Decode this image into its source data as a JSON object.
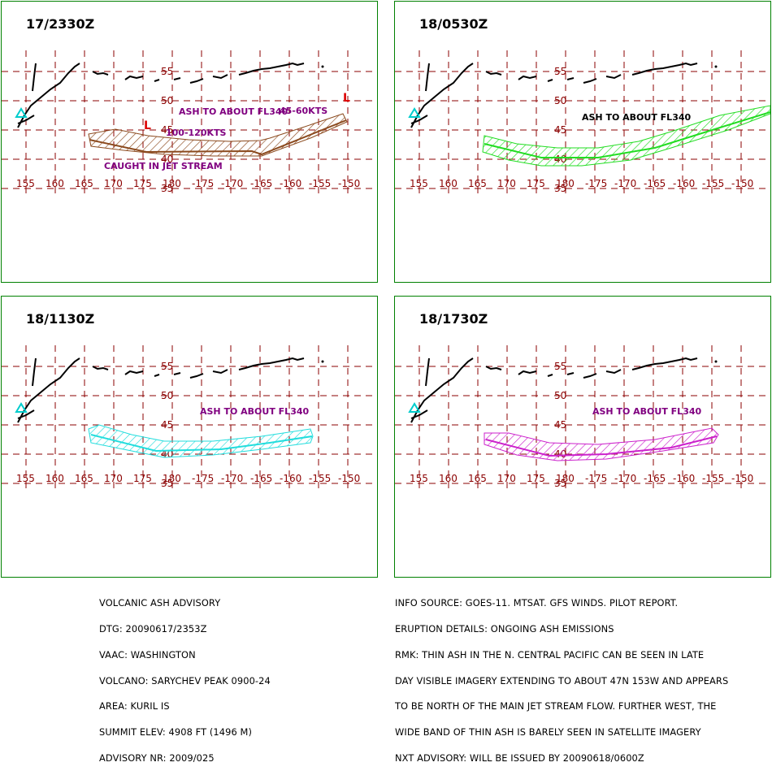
{
  "panels": [
    {
      "title": "17/2330Z",
      "ash_color": "#8b4a1e",
      "labels": [
        "ASH TO ABOUT FL340",
        "45-60KTS",
        "100-120KTS",
        "CAUGHT IN JET STREAM"
      ],
      "low_markers": [
        "L",
        "L"
      ]
    },
    {
      "title": "18/0530Z",
      "ash_color": "#22dd22",
      "labels": [
        "ASH  TO  ABOUT  FL340"
      ]
    },
    {
      "title": "18/1130Z",
      "ash_color": "#22dddd",
      "labels": [
        "ASH TO ABOUT FL340"
      ]
    },
    {
      "title": "18/1730Z",
      "ash_color": "#cc22cc",
      "labels": [
        "ASH TO ABOUT FL340"
      ]
    }
  ],
  "map": {
    "lat_labels": [
      "55",
      "50",
      "45",
      "40",
      "35"
    ],
    "lon_labels": [
      "155",
      "160",
      "165",
      "170",
      "175",
      "180",
      "-175",
      "-170",
      "-165",
      "-160",
      "-155",
      "-150"
    ],
    "grid_color": "#8b0000",
    "volcano_marker": "triangle"
  },
  "footer_left": [
    "VOLCANIC ASH ADVISORY",
    "DTG: 20090617/2353Z",
    "VAAC: WASHINGTON",
    "VOLCANO: SARYCHEV PEAK 0900-24",
    "AREA: KURIL IS",
    "SUMMIT ELEV: 4908 FT (1496 M)",
    "ADVISORY NR: 2009/025"
  ],
  "footer_right": [
    "INFO SOURCE: GOES-11. MTSAT. GFS WINDS. PILOT REPORT.",
    "ERUPTION DETAILS: ONGOING ASH EMISSIONS",
    "RMK: THIN ASH IN THE N. CENTRAL PACIFIC CAN BE SEEN IN LATE",
    "DAY VISIBLE IMAGERY EXTENDING TO ABOUT 47N 153W AND APPEARS",
    "TO BE NORTH OF THE MAIN JET STREAM FLOW. FURTHER WEST, THE",
    "WIDE BAND OF THIN ASH IS BARELY SEEN IN SATELLITE IMAGERY",
    "NXT ADVISORY: WILL BE ISSUED BY 20090618/0600Z"
  ]
}
